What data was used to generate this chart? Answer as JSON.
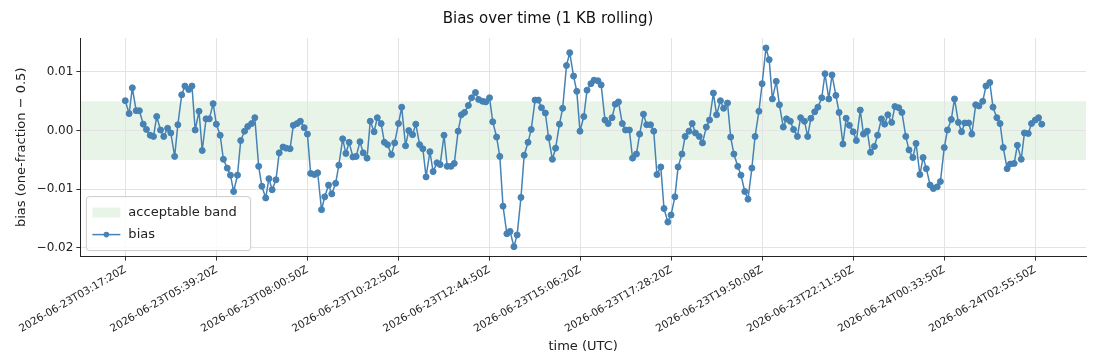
{
  "chart_data": {
    "type": "line",
    "title": "Bias over time (1 KB rolling)",
    "xlabel": "time (UTC)",
    "ylabel": "bias (one-fraction − 0.5)",
    "x": [
      "2026-06-23T03:17",
      "2026-06-23T03:23",
      "2026-06-23T03:28",
      "2026-06-23T03:34",
      "2026-06-23T03:39",
      "2026-06-23T03:45",
      "2026-06-23T03:50",
      "2026-06-23T03:56",
      "2026-06-23T04:01",
      "2026-06-23T04:06",
      "2026-06-23T04:12",
      "2026-06-23T04:17",
      "2026-06-23T04:23",
      "2026-06-23T04:28",
      "2026-06-23T04:34",
      "2026-06-23T04:39",
      "2026-06-23T04:45",
      "2026-06-23T04:50",
      "2026-06-23T04:56",
      "2026-06-23T05:01",
      "2026-06-23T05:06",
      "2026-06-23T05:12",
      "2026-06-23T05:17",
      "2026-06-23T05:23",
      "2026-06-23T05:28",
      "2026-06-23T05:34",
      "2026-06-23T05:39",
      "2026-06-23T05:45",
      "2026-06-23T05:50",
      "2026-06-23T05:56",
      "2026-06-23T06:01",
      "2026-06-23T06:06",
      "2026-06-23T06:12",
      "2026-06-23T06:17",
      "2026-06-23T06:23",
      "2026-06-23T06:28",
      "2026-06-23T06:34",
      "2026-06-23T06:39",
      "2026-06-23T06:45",
      "2026-06-23T06:50",
      "2026-06-23T06:56",
      "2026-06-23T07:01",
      "2026-06-23T07:06",
      "2026-06-23T07:12",
      "2026-06-23T07:17",
      "2026-06-23T07:23",
      "2026-06-23T07:28",
      "2026-06-23T07:34",
      "2026-06-23T07:39",
      "2026-06-23T07:45",
      "2026-06-23T07:50",
      "2026-06-23T07:56",
      "2026-06-23T08:01",
      "2026-06-23T08:06",
      "2026-06-23T08:12",
      "2026-06-23T08:17",
      "2026-06-23T08:23",
      "2026-06-23T08:28",
      "2026-06-23T08:34",
      "2026-06-23T08:39",
      "2026-06-23T08:45",
      "2026-06-23T08:50",
      "2026-06-23T08:56",
      "2026-06-23T09:01",
      "2026-06-23T09:06",
      "2026-06-23T09:12",
      "2026-06-23T09:17",
      "2026-06-23T09:23",
      "2026-06-23T09:28",
      "2026-06-23T09:34",
      "2026-06-23T09:39",
      "2026-06-23T09:45",
      "2026-06-23T09:50",
      "2026-06-23T09:56",
      "2026-06-23T10:01",
      "2026-06-23T10:06",
      "2026-06-23T10:12",
      "2026-06-23T10:17",
      "2026-06-23T10:23",
      "2026-06-23T10:28",
      "2026-06-23T10:34",
      "2026-06-23T10:39",
      "2026-06-23T10:45",
      "2026-06-23T10:50",
      "2026-06-23T10:56",
      "2026-06-23T11:01",
      "2026-06-23T11:06",
      "2026-06-23T11:12",
      "2026-06-23T11:17",
      "2026-06-23T11:23",
      "2026-06-23T11:28",
      "2026-06-23T11:34",
      "2026-06-23T11:39",
      "2026-06-23T11:45",
      "2026-06-23T11:50",
      "2026-06-23T11:56",
      "2026-06-23T12:01",
      "2026-06-23T12:06",
      "2026-06-23T12:12",
      "2026-06-23T12:17",
      "2026-06-23T12:23",
      "2026-06-23T12:28",
      "2026-06-23T12:34",
      "2026-06-23T12:39",
      "2026-06-23T12:45",
      "2026-06-23T12:50",
      "2026-06-23T12:56",
      "2026-06-23T13:01",
      "2026-06-23T13:06",
      "2026-06-23T13:12",
      "2026-06-23T13:17",
      "2026-06-23T13:23",
      "2026-06-23T13:28",
      "2026-06-23T13:34",
      "2026-06-23T13:39",
      "2026-06-23T13:45",
      "2026-06-23T13:50",
      "2026-06-23T13:56",
      "2026-06-23T14:01",
      "2026-06-23T14:06",
      "2026-06-23T14:12",
      "2026-06-23T14:17",
      "2026-06-23T14:23",
      "2026-06-23T14:28",
      "2026-06-23T14:34",
      "2026-06-23T14:39",
      "2026-06-23T14:45",
      "2026-06-23T14:50",
      "2026-06-23T14:56",
      "2026-06-23T15:01",
      "2026-06-23T15:06",
      "2026-06-23T15:12",
      "2026-06-23T15:17",
      "2026-06-23T15:23",
      "2026-06-23T15:28",
      "2026-06-23T15:34",
      "2026-06-23T15:39",
      "2026-06-23T15:45",
      "2026-06-23T15:50",
      "2026-06-23T15:56",
      "2026-06-23T16:01",
      "2026-06-23T16:06",
      "2026-06-23T16:12",
      "2026-06-23T16:17",
      "2026-06-23T16:23",
      "2026-06-23T16:28",
      "2026-06-23T16:34",
      "2026-06-23T16:39",
      "2026-06-23T16:45",
      "2026-06-23T16:50",
      "2026-06-23T16:56",
      "2026-06-23T17:01",
      "2026-06-23T17:06",
      "2026-06-23T17:12",
      "2026-06-23T17:17",
      "2026-06-23T17:23",
      "2026-06-23T17:28",
      "2026-06-23T17:34",
      "2026-06-23T17:39",
      "2026-06-23T17:45",
      "2026-06-23T17:50",
      "2026-06-23T17:56",
      "2026-06-23T18:01",
      "2026-06-23T18:06",
      "2026-06-23T18:12",
      "2026-06-23T18:17",
      "2026-06-23T18:23",
      "2026-06-23T18:28",
      "2026-06-23T18:34",
      "2026-06-23T18:39",
      "2026-06-23T18:45",
      "2026-06-23T18:50",
      "2026-06-23T18:56",
      "2026-06-23T19:01",
      "2026-06-23T19:06",
      "2026-06-23T19:12",
      "2026-06-23T19:17",
      "2026-06-23T19:23",
      "2026-06-23T19:28",
      "2026-06-23T19:34",
      "2026-06-23T19:39",
      "2026-06-23T19:45",
      "2026-06-23T19:50",
      "2026-06-23T19:56",
      "2026-06-23T20:01",
      "2026-06-23T20:06",
      "2026-06-23T20:12",
      "2026-06-23T20:17",
      "2026-06-23T20:23",
      "2026-06-23T20:28",
      "2026-06-23T20:34",
      "2026-06-23T20:39",
      "2026-06-23T20:45",
      "2026-06-23T20:50",
      "2026-06-23T20:56",
      "2026-06-23T21:01",
      "2026-06-23T21:06",
      "2026-06-23T21:12",
      "2026-06-23T21:17",
      "2026-06-23T21:23",
      "2026-06-23T21:28",
      "2026-06-23T21:34",
      "2026-06-23T21:39",
      "2026-06-23T21:45",
      "2026-06-23T21:50",
      "2026-06-23T21:56",
      "2026-06-23T22:01",
      "2026-06-23T22:06",
      "2026-06-23T22:12",
      "2026-06-23T22:17",
      "2026-06-23T22:23",
      "2026-06-23T22:28",
      "2026-06-23T22:34",
      "2026-06-23T22:39",
      "2026-06-23T22:45",
      "2026-06-23T22:50",
      "2026-06-23T22:56",
      "2026-06-23T23:01",
      "2026-06-23T23:06",
      "2026-06-23T23:12",
      "2026-06-23T23:17",
      "2026-06-23T23:23",
      "2026-06-23T23:28",
      "2026-06-23T23:34",
      "2026-06-23T23:39",
      "2026-06-23T23:45",
      "2026-06-23T23:50",
      "2026-06-23T23:56",
      "2026-06-24T00:01",
      "2026-06-24T00:06",
      "2026-06-24T00:12",
      "2026-06-24T00:17",
      "2026-06-24T00:23",
      "2026-06-24T00:28",
      "2026-06-24T00:34",
      "2026-06-24T00:39",
      "2026-06-24T00:45",
      "2026-06-24T00:50",
      "2026-06-24T00:56",
      "2026-06-24T01:01",
      "2026-06-24T01:06",
      "2026-06-24T01:12",
      "2026-06-24T01:17",
      "2026-06-24T01:23",
      "2026-06-24T01:28",
      "2026-06-24T01:34",
      "2026-06-24T01:39",
      "2026-06-24T01:45",
      "2026-06-24T01:50",
      "2026-06-24T01:56",
      "2026-06-24T02:01",
      "2026-06-24T02:06",
      "2026-06-24T02:12",
      "2026-06-24T02:17",
      "2026-06-24T02:23",
      "2026-06-24T02:28",
      "2026-06-24T02:34",
      "2026-06-24T02:39",
      "2026-06-24T02:45",
      "2026-06-24T02:50",
      "2026-06-24T02:56",
      "2026-06-24T03:01",
      "2026-06-24T03:06"
    ],
    "series": [
      {
        "name": "bias",
        "color": "#4682b4",
        "values": [
          0.0051,
          0.0029,
          0.0073,
          0.0034,
          0.0034,
          0.0011,
          0.0002,
          -0.0008,
          -0.001,
          0.0024,
          0.0001,
          -0.001,
          0.0004,
          -0.0004,
          -0.0044,
          0.001,
          0.0061,
          0.0076,
          0.007,
          0.0076,
          0.0001,
          0.0033,
          -0.0034,
          0.002,
          0.002,
          0.0046,
          0.0011,
          -0.0008,
          -0.0049,
          -0.0064,
          -0.0076,
          -0.0104,
          -0.0076,
          -0.0017,
          -0.0001,
          0.0007,
          0.0012,
          0.0022,
          -0.0061,
          -0.0095,
          -0.0115,
          -0.0082,
          -0.0101,
          -0.0084,
          -0.0038,
          -0.0028,
          -0.003,
          -0.0031,
          0.0009,
          0.0012,
          0.0016,
          0.0005,
          -0.0006,
          -0.0073,
          -0.0075,
          -0.0072,
          -0.0135,
          -0.0113,
          -0.0093,
          -0.0108,
          -0.009,
          -0.0059,
          -0.0014,
          -0.0039,
          -0.002,
          -0.0045,
          -0.0044,
          -0.0019,
          -0.0038,
          -0.0047,
          0.0016,
          -0.0002,
          0.0022,
          0.0012,
          -0.002,
          -0.0024,
          -0.0041,
          -0.0021,
          0.0012,
          0.004,
          -0.0026,
          0.0,
          -0.0007,
          0.0011,
          -0.0024,
          -0.0031,
          -0.0079,
          -0.0036,
          -0.007,
          -0.0055,
          -0.0058,
          -0.0008,
          -0.0061,
          -0.0061,
          -0.0056,
          -0.0001,
          0.0027,
          0.0031,
          0.0043,
          0.0056,
          0.0065,
          0.0053,
          0.005,
          0.0049,
          0.0056,
          0.0015,
          -0.0011,
          -0.0044,
          -0.0129,
          -0.0176,
          -0.0172,
          -0.0198,
          -0.0178,
          -0.0114,
          -0.0042,
          -0.002,
          0.0002,
          0.0052,
          0.0052,
          0.0039,
          0.003,
          -0.0012,
          -0.0049,
          -0.003,
          0.0011,
          0.0038,
          0.0111,
          0.0133,
          0.0093,
          0.0067,
          -0.0001,
          0.0024,
          0.0069,
          0.008,
          0.0086,
          0.0085,
          0.0078,
          0.0018,
          0.0012,
          0.0022,
          0.0045,
          0.0049,
          0.0012,
          0.0001,
          0.0001,
          -0.0047,
          -0.004,
          -0.0006,
          0.0028,
          0.001,
          0.001,
          -0.0001,
          -0.0075,
          -0.0062,
          -0.0133,
          -0.0156,
          -0.0144,
          -0.0113,
          -0.0062,
          -0.004,
          -0.001,
          -0.0001,
          0.0012,
          -0.0004,
          -0.001,
          -0.0021,
          0.0006,
          0.0018,
          0.0064,
          0.0027,
          0.0051,
          0.0038,
          0.0047,
          -0.0011,
          -0.004,
          -0.0061,
          -0.0076,
          -0.0104,
          -0.0117,
          -0.0064,
          -0.001,
          0.0033,
          0.008,
          0.0141,
          0.0121,
          0.0054,
          0.0084,
          0.0044,
          0.0006,
          0.002,
          0.0016,
          0.0002,
          -0.001,
          0.0022,
          0.0016,
          -0.001,
          0.0021,
          0.0032,
          0.004,
          0.0056,
          0.0097,
          0.0054,
          0.0095,
          0.006,
          0.0031,
          -0.0023,
          0.0021,
          0.0009,
          -0.0002,
          -0.0017,
          0.0035,
          -0.0006,
          -0.0001,
          -0.0037,
          -0.0027,
          -0.0008,
          0.002,
          0.0011,
          0.0027,
          0.0014,
          0.0041,
          0.0039,
          0.0031,
          -0.001,
          -0.0033,
          -0.0046,
          -0.0022,
          -0.0075,
          -0.0046,
          -0.0065,
          -0.0093,
          -0.0099,
          -0.0096,
          -0.0087,
          -0.0029,
          0.0001,
          0.0019,
          0.0054,
          0.0014,
          -0.0002,
          0.0013,
          0.0013,
          -0.0006,
          0.0044,
          0.0042,
          0.005,
          0.0076,
          0.0082,
          0.004,
          0.0022,
          0.0012,
          -0.0029,
          -0.0065,
          -0.0057,
          -0.0056,
          -0.0025,
          -0.0049,
          -0.0004,
          -0.0005,
          0.0012,
          0.0018,
          0.0022,
          0.0011
        ]
      }
    ],
    "bands": [
      {
        "axis": "y",
        "from": -0.005,
        "to": 0.005,
        "label": "acceptable band",
        "color": "#e9f4e9"
      }
    ],
    "xlim": [
      "2026-06-23T02:07",
      "2026-06-24T04:15"
    ],
    "xticks": [
      {
        "value": "2026-06-23T03:17:20",
        "label": "2026-06-23T03:17:20Z"
      },
      {
        "value": "2026-06-23T05:39:20",
        "label": "2026-06-23T05:39:20Z"
      },
      {
        "value": "2026-06-23T08:00:50",
        "label": "2026-06-23T08:00:50Z"
      },
      {
        "value": "2026-06-23T10:22:50",
        "label": "2026-06-23T10:22:50Z"
      },
      {
        "value": "2026-06-23T12:44:50",
        "label": "2026-06-23T12:44:50Z"
      },
      {
        "value": "2026-06-23T15:06:20",
        "label": "2026-06-23T15:06:20Z"
      },
      {
        "value": "2026-06-23T17:28:20",
        "label": "2026-06-23T17:28:20Z"
      },
      {
        "value": "2026-06-23T19:50:08",
        "label": "2026-06-23T19:50:08Z"
      },
      {
        "value": "2026-06-23T22:11:50",
        "label": "2026-06-23T22:11:50Z"
      },
      {
        "value": "2026-06-24T00:33:50",
        "label": "2026-06-24T00:33:50Z"
      },
      {
        "value": "2026-06-24T02:55:50",
        "label": "2026-06-24T02:55:50Z"
      }
    ],
    "ylim": [
      -0.0215,
      0.0158
    ],
    "yticks": [
      {
        "value": -0.02,
        "label": "−0.02"
      },
      {
        "value": -0.01,
        "label": "−0.01"
      },
      {
        "value": 0,
        "label": "0.00"
      },
      {
        "value": 0.01,
        "label": "0.01"
      }
    ],
    "grid": true,
    "legend": "bottom left",
    "marker": "circle",
    "line_style": "solid"
  }
}
